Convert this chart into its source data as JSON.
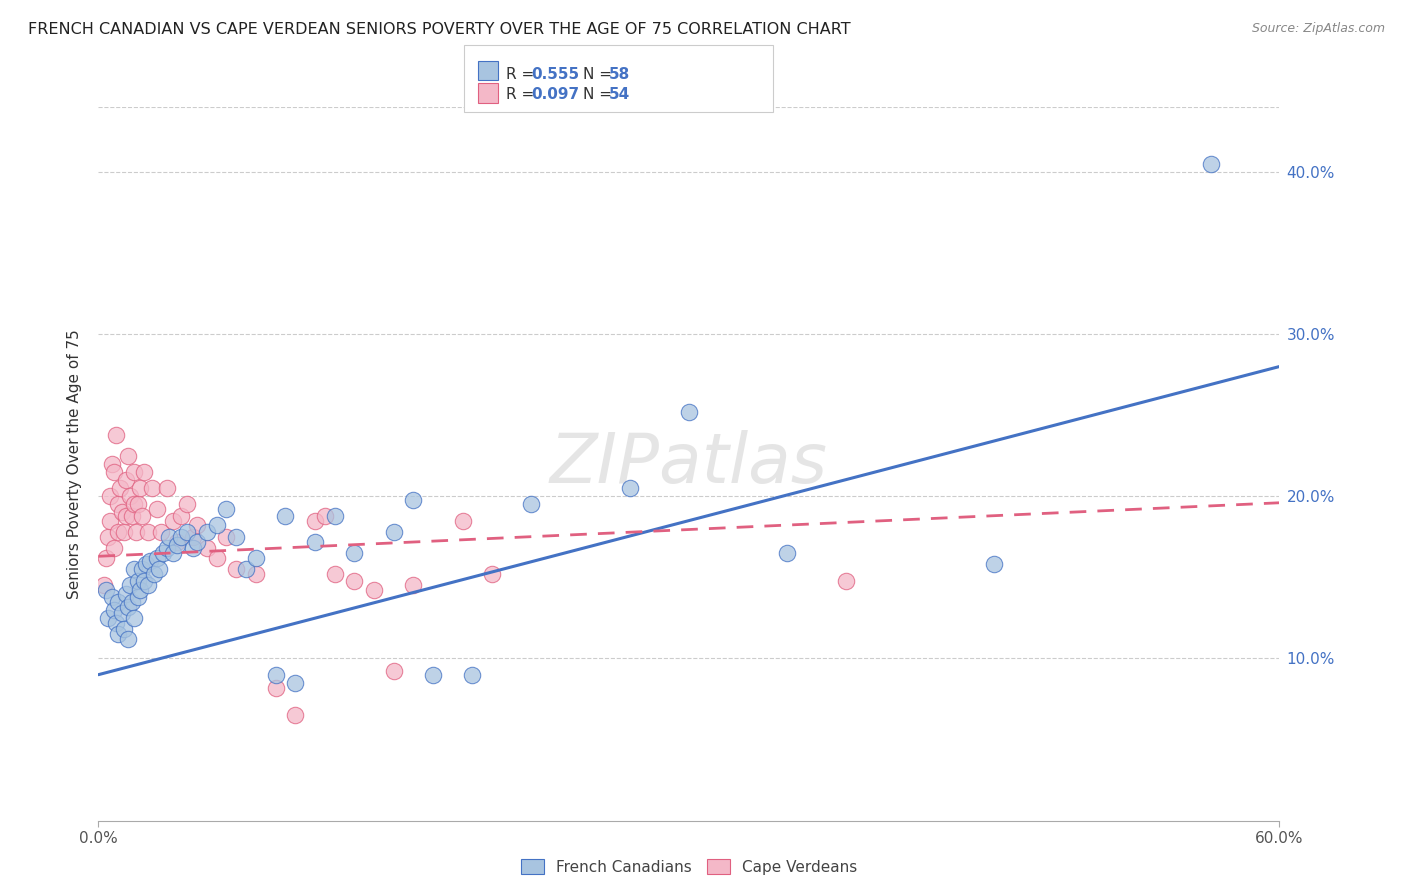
{
  "title": "FRENCH CANADIAN VS CAPE VERDEAN SENIORS POVERTY OVER THE AGE OF 75 CORRELATION CHART",
  "source": "Source: ZipAtlas.com",
  "ylabel": "Seniors Poverty Over the Age of 75",
  "xlim": [
    0.0,
    0.6
  ],
  "ylim": [
    0.0,
    0.44
  ],
  "xtick_positions": [
    0.0,
    0.6
  ],
  "xtick_labels": [
    "0.0%",
    "60.0%"
  ],
  "ytick_positions": [
    0.1,
    0.2,
    0.3,
    0.4
  ],
  "ytick_labels": [
    "10.0%",
    "20.0%",
    "30.0%",
    "40.0%"
  ],
  "grid_lines": [
    0.1,
    0.2,
    0.3,
    0.4
  ],
  "fc_color": "#a8c4e0",
  "cv_color": "#f4b8c8",
  "fc_line_color": "#4472c4",
  "cv_line_color": "#e06080",
  "fc_line_start_y": 0.09,
  "fc_line_end_y": 0.28,
  "cv_line_start_y": 0.163,
  "cv_line_end_y": 0.196,
  "watermark_text": "ZIPatlas",
  "fc_scatter_x": [
    0.004,
    0.005,
    0.007,
    0.008,
    0.009,
    0.01,
    0.01,
    0.012,
    0.013,
    0.014,
    0.015,
    0.015,
    0.016,
    0.017,
    0.018,
    0.018,
    0.02,
    0.02,
    0.021,
    0.022,
    0.023,
    0.024,
    0.025,
    0.026,
    0.028,
    0.03,
    0.031,
    0.033,
    0.035,
    0.036,
    0.038,
    0.04,
    0.042,
    0.045,
    0.048,
    0.05,
    0.055,
    0.06,
    0.065,
    0.07,
    0.075,
    0.08,
    0.09,
    0.095,
    0.1,
    0.11,
    0.12,
    0.13,
    0.15,
    0.16,
    0.17,
    0.19,
    0.22,
    0.27,
    0.3,
    0.35,
    0.455,
    0.565
  ],
  "fc_scatter_y": [
    0.142,
    0.125,
    0.138,
    0.13,
    0.122,
    0.135,
    0.115,
    0.128,
    0.118,
    0.14,
    0.132,
    0.112,
    0.145,
    0.135,
    0.125,
    0.155,
    0.148,
    0.138,
    0.142,
    0.155,
    0.148,
    0.158,
    0.145,
    0.16,
    0.152,
    0.162,
    0.155,
    0.165,
    0.168,
    0.175,
    0.165,
    0.17,
    0.175,
    0.178,
    0.168,
    0.172,
    0.178,
    0.182,
    0.192,
    0.175,
    0.155,
    0.162,
    0.09,
    0.188,
    0.085,
    0.172,
    0.188,
    0.165,
    0.178,
    0.198,
    0.09,
    0.09,
    0.195,
    0.205,
    0.252,
    0.165,
    0.158,
    0.405
  ],
  "cv_scatter_x": [
    0.003,
    0.004,
    0.005,
    0.006,
    0.006,
    0.007,
    0.008,
    0.008,
    0.009,
    0.01,
    0.01,
    0.011,
    0.012,
    0.013,
    0.014,
    0.014,
    0.015,
    0.016,
    0.017,
    0.018,
    0.018,
    0.019,
    0.02,
    0.021,
    0.022,
    0.023,
    0.025,
    0.027,
    0.03,
    0.032,
    0.035,
    0.038,
    0.04,
    0.042,
    0.045,
    0.048,
    0.05,
    0.055,
    0.06,
    0.065,
    0.07,
    0.08,
    0.09,
    0.1,
    0.11,
    0.115,
    0.12,
    0.13,
    0.14,
    0.15,
    0.16,
    0.185,
    0.2,
    0.38
  ],
  "cv_scatter_y": [
    0.145,
    0.162,
    0.175,
    0.2,
    0.185,
    0.22,
    0.215,
    0.168,
    0.238,
    0.195,
    0.178,
    0.205,
    0.19,
    0.178,
    0.21,
    0.188,
    0.225,
    0.2,
    0.188,
    0.215,
    0.195,
    0.178,
    0.195,
    0.205,
    0.188,
    0.215,
    0.178,
    0.205,
    0.192,
    0.178,
    0.205,
    0.185,
    0.172,
    0.188,
    0.195,
    0.175,
    0.182,
    0.168,
    0.162,
    0.175,
    0.155,
    0.152,
    0.082,
    0.065,
    0.185,
    0.188,
    0.152,
    0.148,
    0.142,
    0.092,
    0.145,
    0.185,
    0.152,
    0.148
  ]
}
